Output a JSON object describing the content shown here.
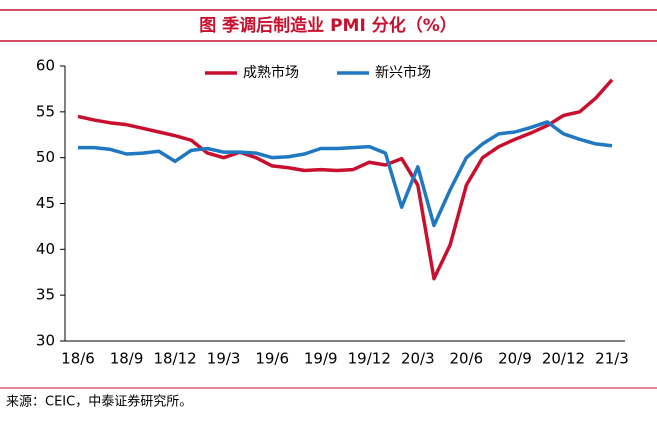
{
  "chart_data": {
    "type": "line",
    "title": "图  季调后制造业 PMI 分化（%）",
    "source": "来源：CEIC，中泰证券研究所。",
    "categories": [
      "18/6",
      null,
      null,
      "18/9",
      null,
      null,
      "18/12",
      null,
      null,
      "19/3",
      null,
      null,
      "19/6",
      null,
      null,
      "19/9",
      null,
      null,
      "19/12",
      null,
      null,
      "20/3",
      null,
      null,
      "20/6",
      null,
      null,
      "20/9",
      null,
      null,
      "20/12",
      null,
      null,
      "21/3"
    ],
    "series": [
      {
        "name": "成熟市场",
        "color": "#c8102e",
        "values": [
          54.5,
          54.1,
          53.8,
          53.6,
          53.2,
          52.8,
          52.4,
          51.9,
          50.5,
          50.0,
          50.6,
          50.0,
          49.1,
          48.9,
          48.6,
          48.7,
          48.6,
          48.7,
          49.5,
          49.2,
          49.9,
          47.0,
          36.8,
          40.5,
          47.0,
          50.0,
          51.2,
          52.0,
          52.7,
          53.5,
          54.6,
          55.0,
          56.5,
          58.5
        ]
      },
      {
        "name": "新兴市场",
        "color": "#1f78c1",
        "values": [
          51.1,
          51.1,
          50.9,
          50.4,
          50.5,
          50.7,
          49.6,
          50.8,
          51.0,
          50.6,
          50.6,
          50.5,
          50.0,
          50.1,
          50.4,
          51.0,
          51.0,
          51.1,
          51.2,
          50.5,
          44.6,
          49.0,
          42.6,
          46.5,
          50.0,
          51.5,
          52.6,
          52.8,
          53.3,
          53.9,
          52.6,
          52.0,
          51.5,
          51.3
        ]
      }
    ],
    "ylim": [
      30,
      60
    ],
    "yticks": [
      30,
      35,
      40,
      45,
      50,
      55,
      60
    ],
    "grid": false,
    "legend": "top"
  }
}
